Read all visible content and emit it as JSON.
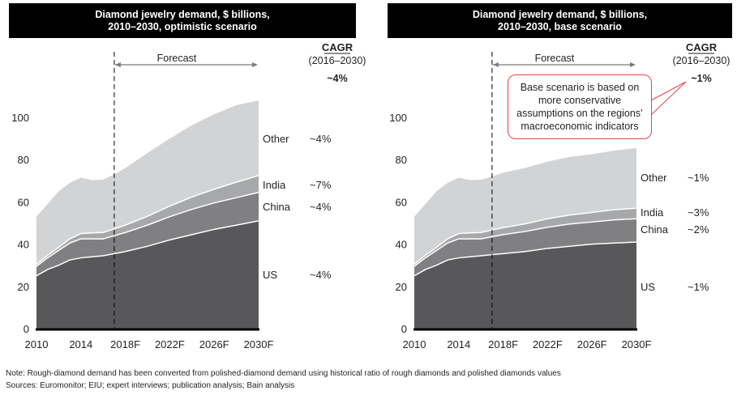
{
  "footer": {
    "note": "Note: Rough-diamond demand has been converted from polished-diamond demand using historical ratio of rough diamonds and polished diamonds values",
    "sources": "Sources: Euromonitor; EIU; expert interviews; publication analysis; Bain analysis"
  },
  "callout": {
    "text": "Base scenario is based on more conservative assumptions on the regions’ macroeconomic indicators",
    "border_color": "#e0464b"
  },
  "colors": {
    "US": "#58585a",
    "China": "#808083",
    "India": "#a7a8aa",
    "Other": "#d2d3d5"
  },
  "chart_data": [
    {
      "type": "area",
      "stacked": true,
      "title": "Diamond jewelry demand, $ billions, 2010–2030, optimistic scenario",
      "title_lines": [
        "Diamond jewelry demand, $ billions,",
        "2010–2030, optimistic scenario"
      ],
      "xlabel": "",
      "ylabel": "",
      "ylim": [
        0,
        110
      ],
      "yticks": [
        0,
        20,
        40,
        60,
        80,
        100
      ],
      "xlim": [
        2010,
        2030
      ],
      "xtick_labels": [
        "2010",
        "2014",
        "2018F",
        "2022F",
        "2026F",
        "2030F"
      ],
      "xtick_values": [
        2010,
        2014,
        2018,
        2022,
        2026,
        2030
      ],
      "forecast_start": 2017,
      "forecast_label": "Forecast",
      "cagr_header": "CAGR",
      "cagr_period": "(2016–2030)",
      "cagr_total": "~4%",
      "x": [
        2010,
        2011,
        2012,
        2013,
        2014,
        2015,
        2016,
        2017,
        2018,
        2020,
        2022,
        2024,
        2026,
        2028,
        2030
      ],
      "series": [
        {
          "name": "US",
          "cagr": "~4%",
          "values": [
            25,
            28,
            30,
            32.5,
            33.5,
            34,
            34.5,
            35.5,
            36.5,
            39,
            42,
            44.5,
            47,
            49,
            51
          ]
        },
        {
          "name": "China",
          "cagr": "~4%",
          "values": [
            4.5,
            5.5,
            7,
            8,
            9,
            8.5,
            8,
            8.5,
            9,
            10,
            11,
            12,
            12.5,
            13,
            13.5
          ]
        },
        {
          "name": "India",
          "cagr": "~7%",
          "values": [
            1,
            1.2,
            1.5,
            2,
            2.5,
            2.8,
            3,
            3.2,
            3.5,
            4.2,
            5,
            5.8,
            6.5,
            7.3,
            8
          ]
        },
        {
          "name": "Other",
          "cagr": "~4%",
          "values": [
            22.5,
            24.3,
            26.5,
            26.5,
            26.5,
            25,
            25,
            25.8,
            27,
            30,
            32,
            34,
            35.5,
            36.5,
            35.5
          ]
        }
      ]
    },
    {
      "type": "area",
      "stacked": true,
      "title": "Diamond jewelry demand, $ billions, 2010–2030, base scenario",
      "title_lines": [
        "Diamond jewelry demand, $ billions,",
        "2010–2030, base scenario"
      ],
      "xlabel": "",
      "ylabel": "",
      "ylim": [
        0,
        110
      ],
      "yticks": [
        0,
        20,
        40,
        60,
        80,
        100
      ],
      "xlim": [
        2010,
        2030
      ],
      "xtick_labels": [
        "2010",
        "2014",
        "2018F",
        "2022F",
        "2026F",
        "2030F"
      ],
      "xtick_values": [
        2010,
        2014,
        2018,
        2022,
        2026,
        2030
      ],
      "forecast_start": 2017,
      "forecast_label": "Forecast",
      "cagr_header": "CAGR",
      "cagr_period": "(2016–2030)",
      "cagr_total": "~1%",
      "x": [
        2010,
        2011,
        2012,
        2013,
        2014,
        2015,
        2016,
        2017,
        2018,
        2020,
        2022,
        2024,
        2026,
        2028,
        2030
      ],
      "series": [
        {
          "name": "US",
          "cagr": "~1%",
          "values": [
            25,
            28,
            30,
            32.5,
            33.5,
            34,
            34.5,
            35,
            35.5,
            36.5,
            38,
            39,
            40,
            40.5,
            41
          ]
        },
        {
          "name": "China",
          "cagr": "~2%",
          "values": [
            4.5,
            5.5,
            7,
            8,
            9,
            8.5,
            8,
            8.5,
            9,
            9.5,
            10,
            10.5,
            10.5,
            11,
            11
          ]
        },
        {
          "name": "India",
          "cagr": "~3%",
          "values": [
            1,
            1.2,
            1.5,
            2,
            2.5,
            2.8,
            3,
            3.2,
            3.3,
            3.6,
            4,
            4.3,
            4.5,
            4.8,
            5
          ]
        },
        {
          "name": "Other",
          "cagr": "~1%",
          "values": [
            22.5,
            24.3,
            26.5,
            26.5,
            26.5,
            25,
            25,
            25.3,
            26,
            26.5,
            27,
            27.5,
            27.5,
            28,
            28.5
          ]
        }
      ]
    }
  ]
}
